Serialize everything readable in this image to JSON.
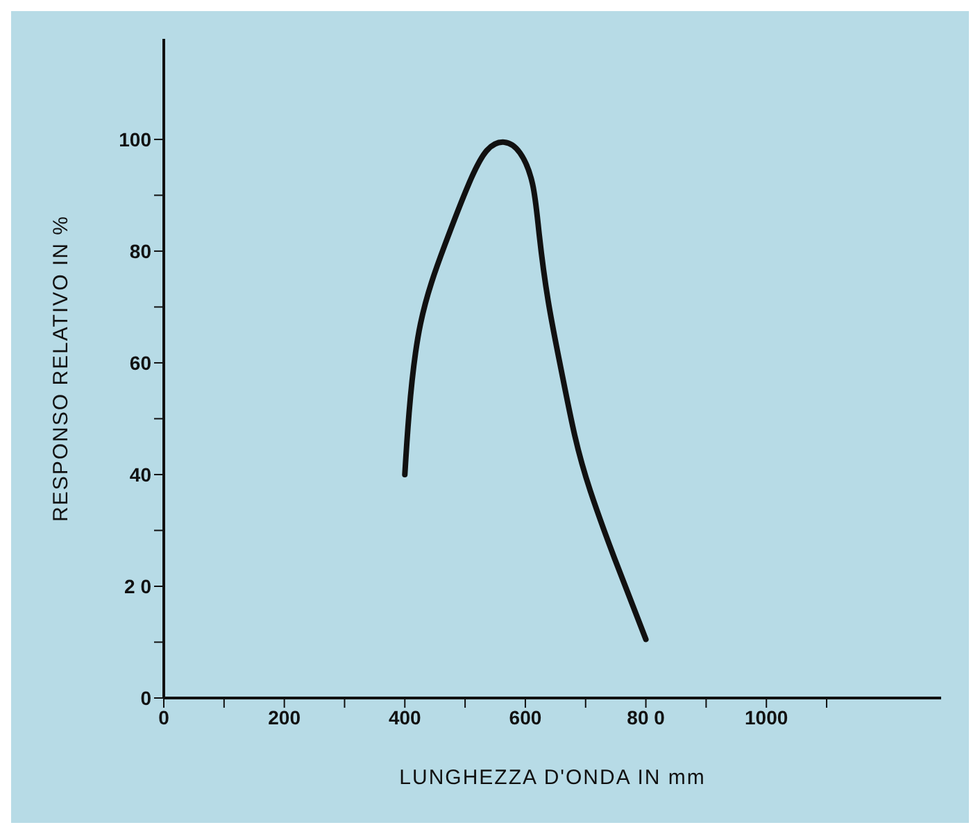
{
  "chart_data": {
    "type": "line",
    "xlabel": "LUNGHEZZA D'ONDA IN mm",
    "ylabel": "RESPONSO RELATIVO IN %",
    "series": [
      {
        "color": "#111111",
        "x": [
          400,
          407,
          426,
          466,
          506,
          536,
          565,
          591,
          612,
          623,
          638,
          659,
          682,
          708,
          748,
          800
        ],
        "values": [
          40,
          51,
          67,
          81,
          92,
          98,
          99.5,
          97.6,
          92,
          83,
          71,
          59,
          47,
          37,
          25,
          10.5
        ]
      }
    ],
    "xlim": [
      0,
      1290
    ],
    "xticks": [
      0,
      {
        "value": 100,
        "label": null
      },
      200,
      {
        "value": 300,
        "label": null
      },
      400,
      {
        "value": 500,
        "label": null
      },
      600,
      {
        "value": 700,
        "label": null
      },
      {
        "value": 800,
        "label": "80 0"
      },
      {
        "value": 900,
        "label": null
      },
      1000,
      {
        "value": 1100,
        "label": null
      }
    ],
    "ylim": [
      0,
      118
    ],
    "yticks": [
      0,
      {
        "value": 10,
        "label": null
      },
      {
        "value": 20,
        "label": "2 0"
      },
      {
        "value": 30,
        "label": null
      },
      40,
      {
        "value": 50,
        "label": null
      },
      60,
      {
        "value": 70,
        "label": null
      },
      80,
      {
        "value": 90,
        "label": null
      },
      100
    ],
    "grid": false,
    "legend": false,
    "marker": "none",
    "line_style": "solid"
  }
}
